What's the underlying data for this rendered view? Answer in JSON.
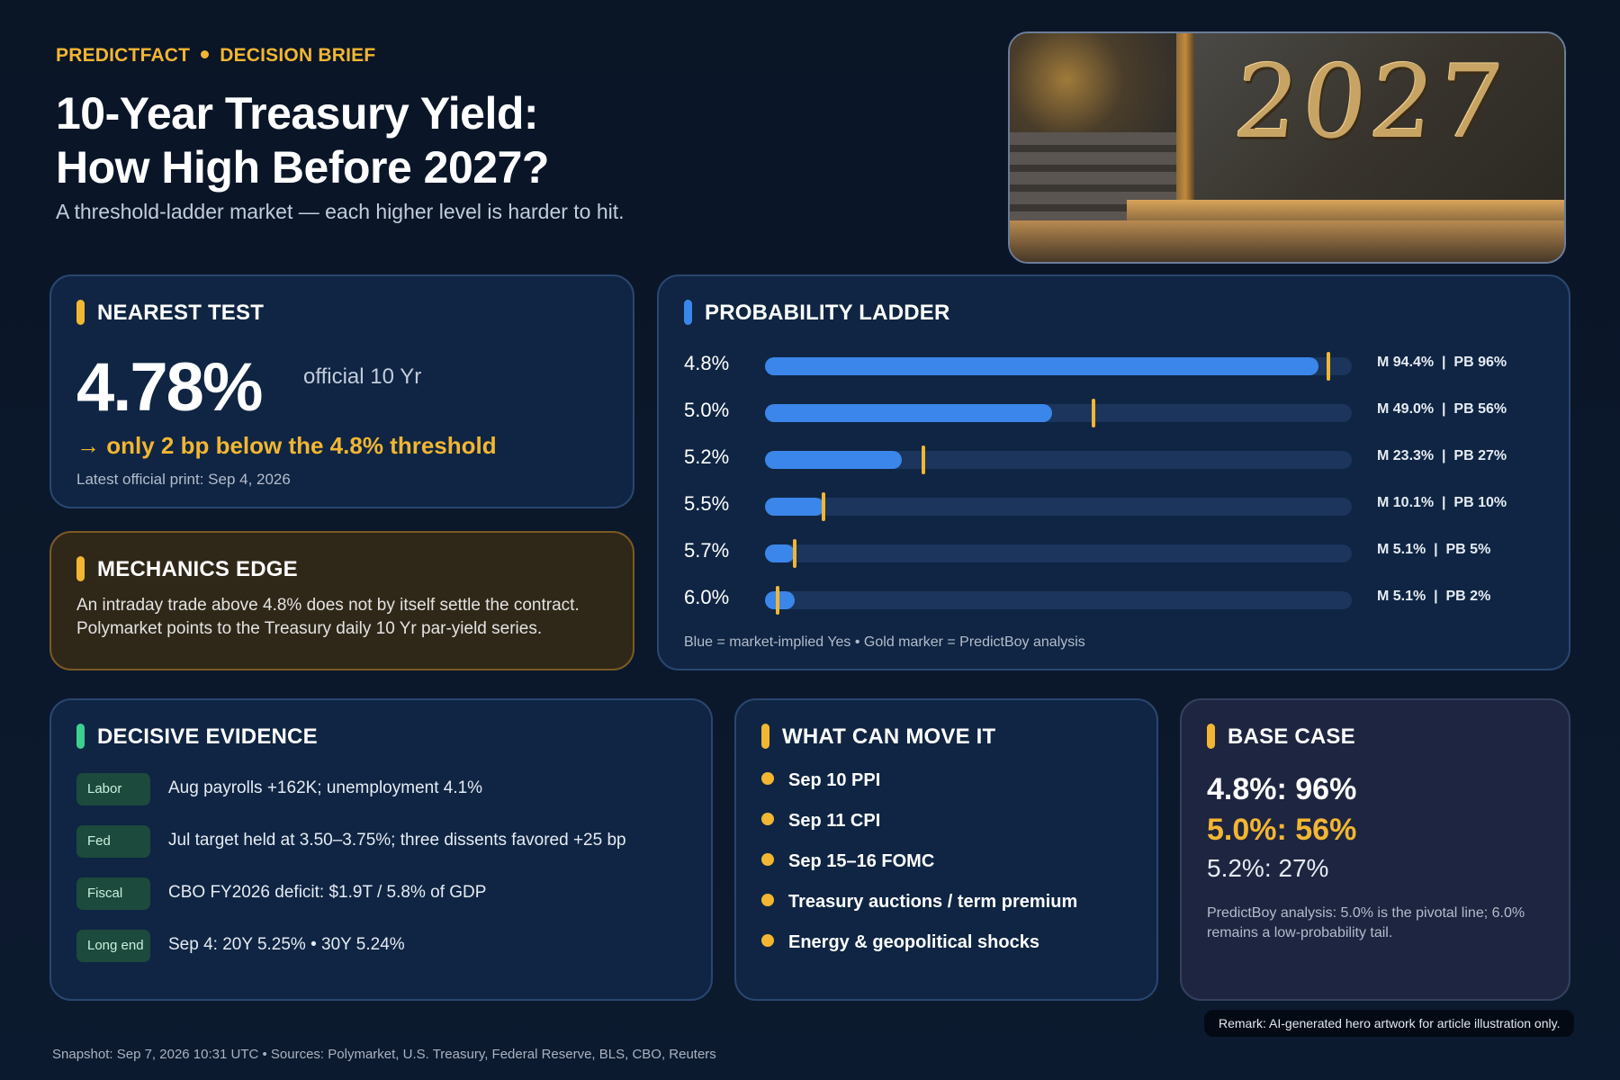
{
  "header": {
    "brand": "PREDICTFACT",
    "section": "DECISION BRIEF",
    "title_line1": "10-Year Treasury Yield:",
    "title_line2": "How High Before 2027?",
    "subtitle": "A threshold-ladder market — each higher level is harder to hit."
  },
  "hero": {
    "year_text": "2027"
  },
  "nearest_test": {
    "heading": "NEAREST TEST",
    "value": "4.78%",
    "value_label": "official 10 Yr",
    "threshold_note": "→ only 2 bp below the 4.8% threshold",
    "latest_print": "Latest official print: Sep 4, 2026",
    "accent": "#f2b632"
  },
  "mechanics_edge": {
    "heading": "MECHANICS EDGE",
    "line1": "An intraday trade above 4.8% does not by itself settle the contract.",
    "line2": "Polymarket points to the Treasury daily 10 Yr par-yield series.",
    "accent": "#f2b632"
  },
  "probability_ladder": {
    "heading": "PROBABILITY LADDER",
    "accent": "#3b86ea",
    "rows": [
      {
        "level": "4.8%",
        "market": 94.4,
        "predictboy": 96,
        "stats": "M 94.4%  |  PB 96%"
      },
      {
        "level": "5.0%",
        "market": 49.0,
        "predictboy": 56,
        "stats": "M 49.0%  |  PB 56%"
      },
      {
        "level": "5.2%",
        "market": 23.3,
        "predictboy": 27,
        "stats": "M 23.3%  |  PB 27%"
      },
      {
        "level": "5.5%",
        "market": 10.1,
        "predictboy": 10,
        "stats": "M 10.1%  |  PB 10%"
      },
      {
        "level": "5.7%",
        "market": 5.1,
        "predictboy": 5,
        "stats": "M 5.1%  |  PB 5%"
      },
      {
        "level": "6.0%",
        "market": 5.1,
        "predictboy": 2,
        "stats": "M 5.1%  |  PB 2%"
      }
    ],
    "note": "Blue = market-implied Yes • Gold marker = PredictBoy analysis"
  },
  "decisive_evidence": {
    "heading": "DECISIVE EVIDENCE",
    "accent": "#3ccf8e",
    "items": [
      {
        "tag": "Labor",
        "text": "Aug payrolls +162K; unemployment 4.1%"
      },
      {
        "tag": "Fed",
        "text": "Jul target held at 3.50–3.75%; three dissents favored +25 bp"
      },
      {
        "tag": "Fiscal",
        "text": "CBO FY2026 deficit: $1.9T / 5.8% of GDP"
      },
      {
        "tag": "Long end",
        "text": "Sep 4: 20Y 5.25% • 30Y 5.24%"
      }
    ]
  },
  "what_can_move_it": {
    "heading": "WHAT CAN MOVE IT",
    "accent": "#f2b632",
    "items": [
      "Sep 10 PPI",
      "Sep 11 CPI",
      "Sep 15–16 FOMC",
      "Treasury auctions / term premium",
      "Energy & geopolitical shocks"
    ]
  },
  "base_case": {
    "heading": "BASE CASE",
    "accent": "#f2b632",
    "line1": "4.8%: 96%",
    "line2": "5.0%: 56%",
    "line3": "5.2%: 27%",
    "note": "PredictBoy analysis: 5.0% is the pivotal line; 6.0% remains a low-probability tail."
  },
  "remark": "Remark: AI-generated hero artwork for article illustration only.",
  "footer": "Snapshot: Sep 7, 2026 10:31 UTC • Sources: Polymarket, U.S. Treasury, Federal Reserve, BLS, CBO, Reuters"
}
